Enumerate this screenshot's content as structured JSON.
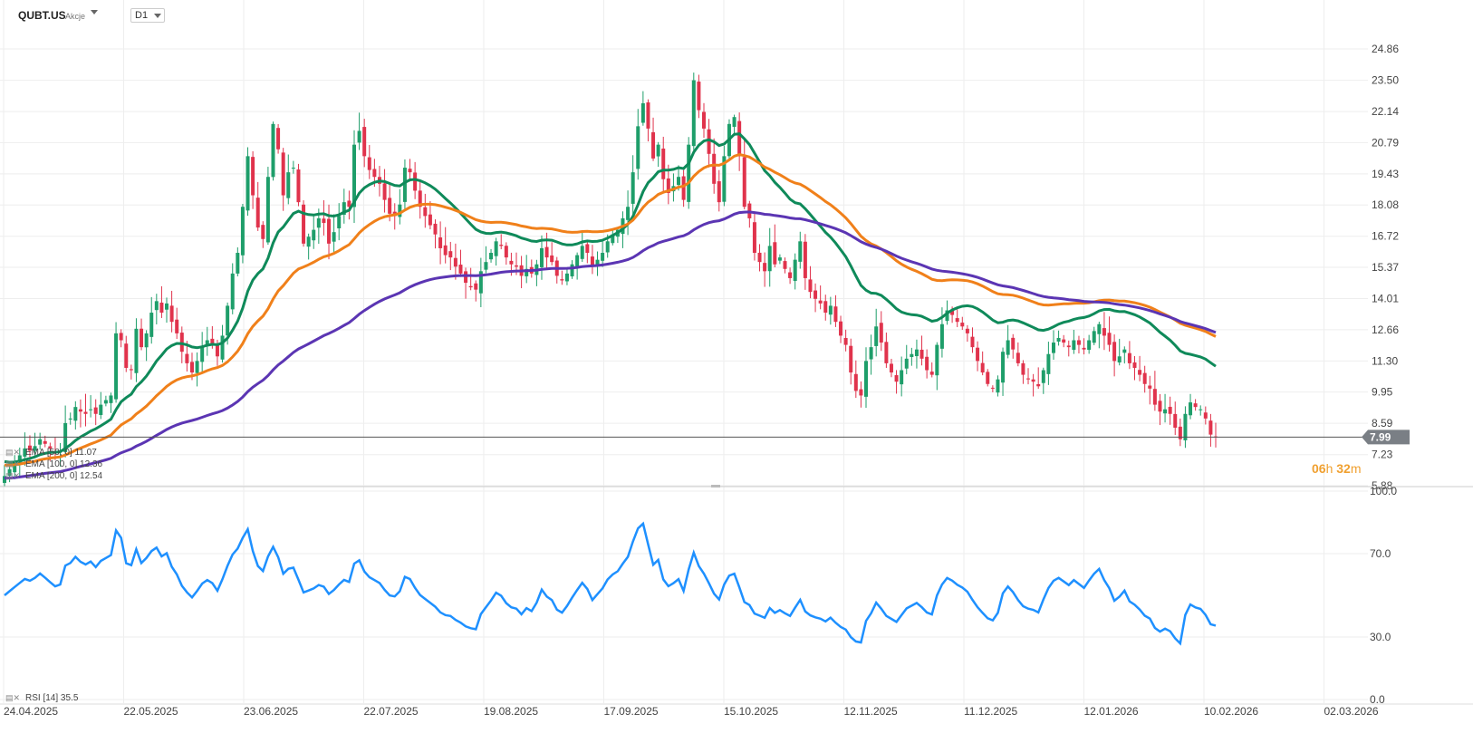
{
  "header": {
    "symbol": "QUBT.US",
    "asset_class": "Akcje",
    "timeframe": "D1"
  },
  "price_panel": {
    "y_ticks": [
      "24.86",
      "23.50",
      "22.14",
      "20.79",
      "19.43",
      "18.08",
      "16.72",
      "15.37",
      "14.01",
      "12.66",
      "11.30",
      "9.95",
      "8.59",
      "7.23",
      "5.88"
    ],
    "current_price": "7.99",
    "timer": {
      "hours": "06",
      "h": "h",
      "minutes": "32",
      "m": "m"
    },
    "legend": [
      {
        "label": "EMA [50, 0]",
        "value": "11.07",
        "color": "#0f8a5a"
      },
      {
        "label": "EMA [100, 0]",
        "value": "12.36",
        "color": "#f0801a"
      },
      {
        "label": "EMA [200, 0]",
        "value": "12.54",
        "color": "#5b35b3"
      }
    ]
  },
  "rsi_panel": {
    "label": "RSI [14]",
    "value": "35.5",
    "y_ticks": [
      "100.0",
      "70.0",
      "30.0",
      "0.0"
    ],
    "color": "#1e90ff"
  },
  "x_axis": {
    "labels": [
      "24.04.2025",
      "22.05.2025",
      "23.06.2025",
      "22.07.2025",
      "19.08.2025",
      "17.09.2025",
      "15.10.2025",
      "12.11.2025",
      "11.12.2025",
      "12.01.2026",
      "10.02.2026",
      "02.03.2026"
    ]
  },
  "colors": {
    "up": "#1e9e6a",
    "down": "#e0334c",
    "grid": "#eeeeee"
  },
  "chart_data": {
    "type": "candlestick",
    "ylim": [
      5.88,
      26.0
    ],
    "close_series": [
      6.3,
      6.6,
      6.9,
      7.2,
      7.5,
      7.4,
      7.6,
      7.9,
      7.7,
      7.5,
      7.3,
      7.4,
      8.6,
      8.8,
      9.3,
      9.1,
      9.0,
      9.2,
      9.0,
      9.4,
      9.6,
      9.8,
      12.5,
      12.2,
      11.0,
      10.9,
      12.7,
      11.9,
      12.5,
      13.4,
      13.9,
      13.4,
      13.8,
      13.0,
      12.5,
      11.7,
      11.2,
      10.8,
      11.3,
      11.9,
      12.2,
      12.0,
      11.5,
      12.4,
      13.7,
      15.1,
      16.0,
      18.0,
      20.2,
      18.5,
      17.1,
      16.6,
      19.3,
      21.6,
      20.5,
      18.5,
      19.5,
      19.7,
      18.2,
      16.4,
      16.7,
      17.0,
      17.5,
      17.3,
      16.4,
      16.9,
      17.6,
      18.2,
      18.0,
      20.7,
      21.3,
      20.2,
      19.6,
      19.3,
      19.0,
      18.3,
      17.7,
      17.6,
      18.1,
      19.7,
      19.5,
      18.7,
      18.0,
      17.6,
      17.2,
      16.8,
      16.2,
      15.9,
      15.8,
      15.4,
      15.1,
      14.7,
      14.5,
      14.4,
      15.2,
      15.6,
      16.0,
      16.5,
      16.3,
      15.8,
      15.5,
      15.4,
      15.0,
      15.3,
      15.1,
      15.5,
      16.2,
      15.8,
      15.6,
      15.0,
      14.8,
      15.1,
      15.5,
      15.9,
      16.3,
      16.0,
      15.4,
      15.7,
      16.0,
      16.5,
      16.8,
      17.0,
      17.5,
      18.0,
      19.5,
      21.5,
      22.5,
      21.4,
      20.1,
      20.7,
      19.2,
      18.6,
      18.9,
      19.3,
      18.3,
      20.7,
      23.5,
      22.2,
      21.4,
      20.3,
      19.0,
      18.2,
      20.2,
      21.6,
      21.9,
      20.2,
      18.0,
      17.5,
      16.0,
      15.6,
      15.2,
      16.3,
      15.5,
      15.8,
      15.3,
      14.9,
      15.7,
      16.5,
      14.9,
      14.3,
      14.0,
      13.8,
      13.4,
      13.7,
      13.0,
      12.4,
      12.0,
      10.8,
      10.0,
      9.8,
      11.3,
      11.9,
      12.8,
      12.1,
      11.2,
      10.8,
      10.4,
      10.9,
      11.4,
      11.6,
      11.8,
      11.4,
      10.9,
      10.7,
      12.0,
      12.9,
      13.5,
      13.3,
      13.0,
      12.8,
      12.5,
      11.9,
      11.3,
      10.8,
      10.3,
      10.1,
      10.5,
      11.7,
      12.2,
      11.8,
      11.2,
      10.7,
      10.5,
      10.4,
      10.2,
      10.9,
      11.6,
      12.1,
      12.3,
      12.1,
      11.9,
      12.2,
      12.0,
      11.8,
      12.2,
      12.6,
      12.9,
      12.4,
      12.0,
      11.3,
      11.5,
      11.8,
      11.2,
      11.0,
      10.7,
      10.3,
      10.1,
      9.4,
      9.1,
      9.2,
      9.0,
      8.4,
      7.9,
      9.0,
      9.5,
      9.3,
      9.2,
      8.8,
      8.1,
      7.99
    ],
    "ema": [
      {
        "name": "EMA [50, 0]",
        "last": 11.07,
        "color": "#0f8a5a"
      },
      {
        "name": "EMA [100, 0]",
        "last": 12.36,
        "color": "#f0801a"
      },
      {
        "name": "EMA [200, 0]",
        "last": 12.54,
        "color": "#5b35b3"
      }
    ],
    "rsi": {
      "name": "RSI [14]",
      "last": 35.5,
      "ylim": [
        0,
        100
      ]
    }
  }
}
